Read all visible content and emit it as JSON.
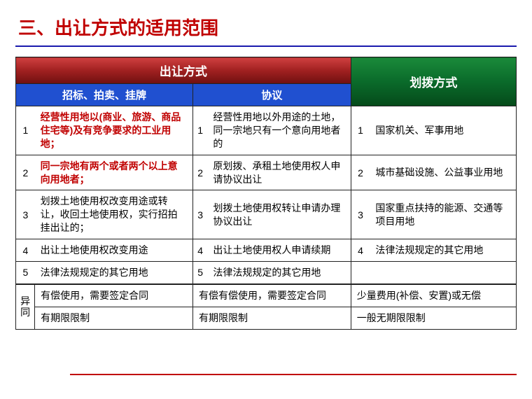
{
  "title": "三、出让方式的适用范围",
  "headers": {
    "transfer": "出让方式",
    "allocate": "划拨方式",
    "sub1": "招标、拍卖、挂牌",
    "sub2": "协议"
  },
  "rows": [
    {
      "n": "1",
      "c1": "经营性用地以(商业、旅游、商品住宅等)及有竞争要求的工业用地；",
      "c1_highlight": true,
      "c2": "经营性用地以外用途的土地，同一宗地只有一个意向用地者的",
      "c3": "国家机关、军事用地"
    },
    {
      "n": "2",
      "c1": "同一宗地有两个或者两个以上意向用地者；",
      "c1_highlight": true,
      "c2": "原划拨、承租土地使用权人申请协议出让",
      "c3": "城市基础设施、公益事业用地"
    },
    {
      "n": "3",
      "c1": "划拨土地使用权改变用途或转让，收回土地使用权，实行招拍挂出让的；",
      "c1_highlight": false,
      "c2": "划拨土地使用权转让申请办理协议出让",
      "c3": "国家重点扶持的能源、交通等项目用地"
    },
    {
      "n": "4",
      "c1": "出让土地使用权改变用途",
      "c1_highlight": false,
      "c2": "出让土地使用权人申请续期",
      "c3": "法律法规规定的其它用地"
    },
    {
      "n": "5",
      "c1": "法律法规规定的其它用地",
      "c1_highlight": false,
      "c2": "法律法规规定的其它用地",
      "c3": ""
    }
  ],
  "diff_label": "异同",
  "diff_rows": [
    {
      "c1": "有偿使用，需要签定合同",
      "c2": "有偿有偿使用，需要签定合同",
      "c3": "少量费用(补偿、安置)或无偿"
    },
    {
      "c1": "有期限限制",
      "c2": "有期限限制",
      "c3": "一般无期限限制"
    }
  ],
  "colors": {
    "title": "#c00000",
    "underline": "#1a1aad",
    "accent": "#c00000"
  }
}
